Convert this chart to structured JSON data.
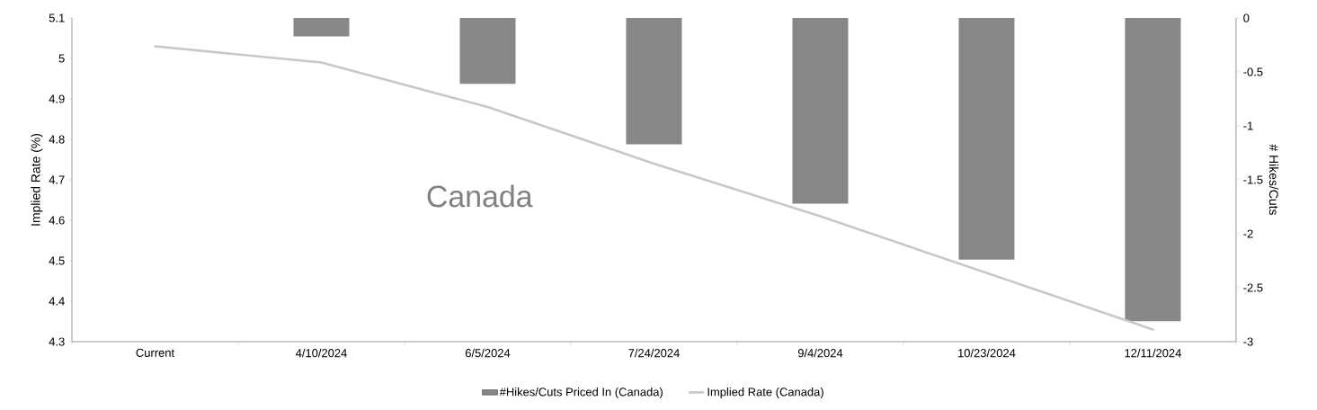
{
  "chart_data": {
    "type": "bar",
    "categories": [
      "Current",
      "4/10/2024",
      "6/5/2024",
      "7/24/2024",
      "9/4/2024",
      "10/23/2024",
      "12/11/2024"
    ],
    "series": [
      {
        "name": "#Hikes/Cuts Priced In (Canada)",
        "axis": "y2",
        "color": "#878787",
        "values": [
          null,
          -0.17,
          -0.61,
          -1.17,
          -1.72,
          -2.24,
          -2.81
        ]
      },
      {
        "name": "Implied Rate (Canada)",
        "type": "line",
        "axis": "y",
        "color": "#c8c8c8",
        "values": [
          5.03,
          4.99,
          4.88,
          4.74,
          4.61,
          4.47,
          4.33
        ]
      }
    ],
    "ylabel": "Implied Rate (%)",
    "y2label": "# Hikes/Cuts",
    "ylim": [
      4.3,
      5.1
    ],
    "yticks": [
      4.3,
      4.4,
      4.5,
      4.6,
      4.7,
      4.8,
      4.9,
      5,
      5.1
    ],
    "y2lim": [
      -3,
      0
    ],
    "y2ticks": [
      -3,
      -2.5,
      -2,
      -1.5,
      -1,
      -0.5,
      0
    ],
    "annotations": [
      "Canada"
    ],
    "legend": "bottom"
  }
}
